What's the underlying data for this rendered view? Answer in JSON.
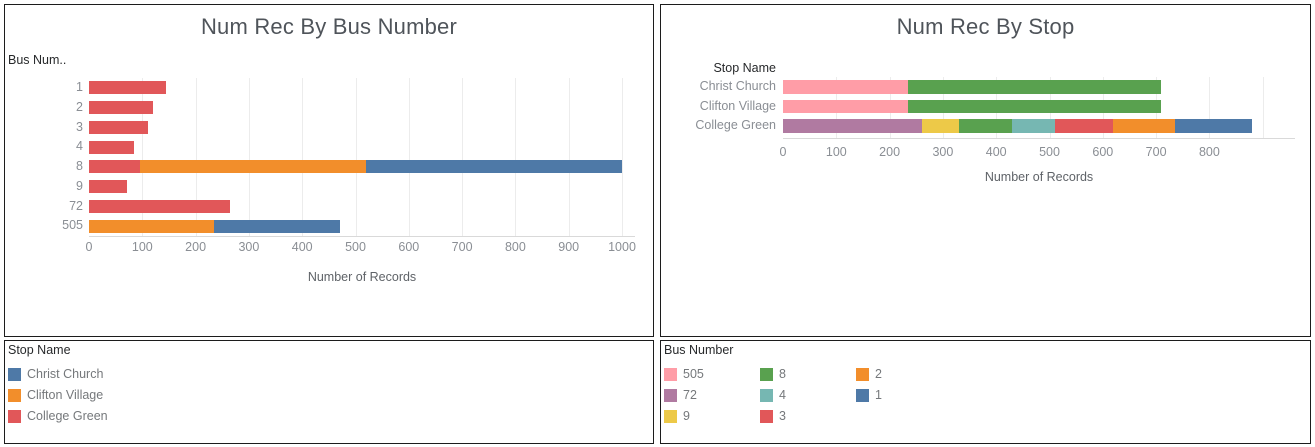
{
  "dashboard": {
    "background": "#ffffff",
    "panel_border_color": "#1c1c1c"
  },
  "chart_data": [
    {
      "type": "bar",
      "orientation": "horizontal",
      "stacked": true,
      "title": "Num Rec By Bus Number",
      "category_header": "Bus Num..",
      "categories": [
        "1",
        "2",
        "3",
        "4",
        "8",
        "9",
        "72",
        "505"
      ],
      "series": [
        {
          "name": "College Green",
          "color": "#e15759",
          "values": [
            145,
            120,
            110,
            85,
            95,
            72,
            265,
            0
          ]
        },
        {
          "name": "Clifton Village",
          "color": "#f28e2b",
          "values": [
            0,
            0,
            0,
            0,
            425,
            0,
            0,
            235
          ]
        },
        {
          "name": "Christ Church",
          "color": "#4e79a7",
          "values": [
            0,
            0,
            0,
            0,
            480,
            0,
            0,
            235
          ]
        }
      ],
      "xlabel": "Number of Records",
      "xlim": [
        0,
        1025
      ],
      "xticks": [
        0,
        100,
        200,
        300,
        400,
        500,
        600,
        700,
        800,
        900,
        1000
      ],
      "gridlines_every": 100,
      "gridlines_to": 1000,
      "legend_position": "separate-panel"
    },
    {
      "type": "bar",
      "orientation": "horizontal",
      "stacked": true,
      "title": "Num Rec By Stop",
      "category_header": "Stop Name",
      "categories": [
        "Christ Church",
        "Clifton Village",
        "College Green"
      ],
      "series": [
        {
          "name": "505",
          "color": "#ff9da7",
          "values": [
            235,
            235,
            0
          ]
        },
        {
          "name": "72",
          "color": "#b07aa1",
          "values": [
            0,
            0,
            260
          ]
        },
        {
          "name": "9",
          "color": "#edc948",
          "values": [
            0,
            0,
            70
          ]
        },
        {
          "name": "8",
          "color": "#59a14f",
          "values": [
            475,
            475,
            100
          ]
        },
        {
          "name": "4",
          "color": "#76b7b2",
          "values": [
            0,
            0,
            80
          ]
        },
        {
          "name": "3",
          "color": "#e15759",
          "values": [
            0,
            0,
            110
          ]
        },
        {
          "name": "2",
          "color": "#f28e2b",
          "values": [
            0,
            0,
            115
          ]
        },
        {
          "name": "1",
          "color": "#4e79a7",
          "values": [
            0,
            0,
            145
          ]
        }
      ],
      "xlabel": "Number of Records",
      "xlim": [
        0,
        960
      ],
      "xticks": [
        0,
        100,
        200,
        300,
        400,
        500,
        600,
        700,
        800
      ],
      "gridlines_every": 100,
      "gridlines_to": 900,
      "legend_position": "separate-panel"
    }
  ],
  "legends": {
    "stop": {
      "title": "Stop Name",
      "items": [
        {
          "label": "Christ Church",
          "color": "#4e79a7"
        },
        {
          "label": "Clifton Village",
          "color": "#f28e2b"
        },
        {
          "label": "College Green",
          "color": "#e15759"
        }
      ]
    },
    "bus": {
      "title": "Bus Number",
      "columns": 3,
      "items": [
        {
          "label": "505",
          "color": "#ff9da7"
        },
        {
          "label": "72",
          "color": "#b07aa1"
        },
        {
          "label": "9",
          "color": "#edc948"
        },
        {
          "label": "8",
          "color": "#59a14f"
        },
        {
          "label": "4",
          "color": "#76b7b2"
        },
        {
          "label": "3",
          "color": "#e15759"
        },
        {
          "label": "2",
          "color": "#f28e2b"
        },
        {
          "label": "1",
          "color": "#4e79a7"
        }
      ]
    }
  }
}
